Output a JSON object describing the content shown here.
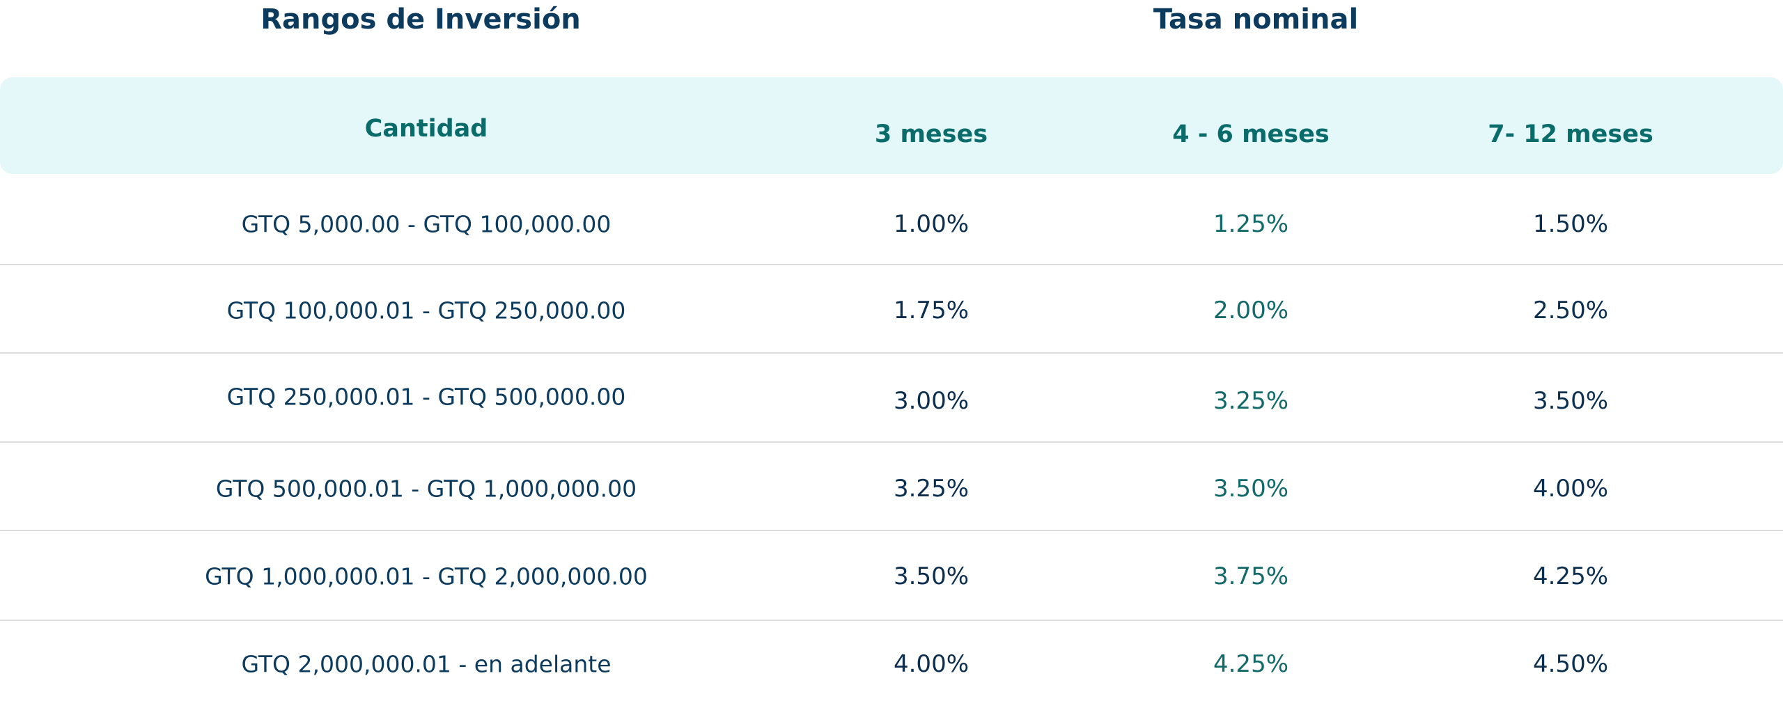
{
  "header": {
    "range_title": "Rangos de Inversión",
    "rate_title": "Tasa nominal"
  },
  "table": {
    "columns": [
      "Cantidad",
      "3 meses",
      "4 - 6 meses",
      "7- 12 meses"
    ],
    "rows": [
      [
        "GTQ 5,000.00 - GTQ 100,000.00",
        "1.00%",
        "1.25%",
        "1.50%"
      ],
      [
        "GTQ 100,000.01 - GTQ 250,000.00",
        "1.75%",
        "2.00%",
        "2.50%"
      ],
      [
        "GTQ 250,000.01 - GTQ 500,000.00",
        "3.00%",
        "3.25%",
        "3.50%"
      ],
      [
        "GTQ 500,000.01 - GTQ 1,000,000.00",
        "3.25%",
        "3.50%",
        "4.00%"
      ],
      [
        "GTQ 1,000,000.01 - GTQ 2,000,000.00",
        "3.50%",
        "3.75%",
        "4.25%"
      ],
      [
        "GTQ 2,000,000.01 - en adelante",
        "4.00%",
        "4.25%",
        "4.50%"
      ]
    ]
  }
}
